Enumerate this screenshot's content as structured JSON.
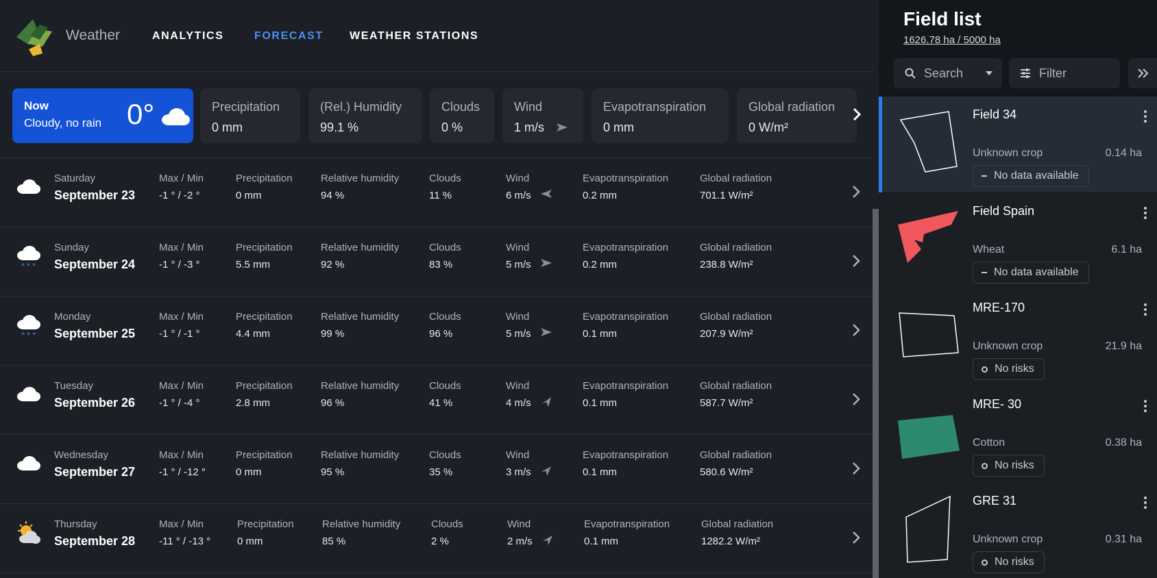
{
  "app": {
    "name": "Weather"
  },
  "nav": {
    "items": [
      {
        "label": "ANALYTICS",
        "active": false
      },
      {
        "label": "FORECAST",
        "active": true
      },
      {
        "label": "WEATHER STATIONS",
        "active": false
      }
    ]
  },
  "current": {
    "label": "Now",
    "condition": "Cloudy, no rain",
    "temperature": "0°",
    "icon": "cloud-icon",
    "metrics": [
      {
        "label": "Precipitation",
        "value": "0 mm"
      },
      {
        "label": "(Rel.) Humidity",
        "value": "99.1 %"
      },
      {
        "label": "Clouds",
        "value": "0 %"
      },
      {
        "label": "Wind",
        "value": "1 m/s"
      },
      {
        "label": "Evapotranspiration",
        "value": "0 mm"
      },
      {
        "label": "Global radiation",
        "value": "0 W/m²"
      }
    ]
  },
  "forecast_labels": {
    "maxmin": "Max / Min",
    "precip": "Precipitation",
    "humidity": "Relative humidity",
    "clouds": "Clouds",
    "wind": "Wind",
    "evap": "Evapotranspiration",
    "radiation": "Global radiation"
  },
  "forecast": [
    {
      "day": "Saturday",
      "date": "September 23",
      "icon": "cloud-icon",
      "maxmin": "-1 ° / -2 °",
      "precip": "0 mm",
      "humidity": "94 %",
      "clouds": "11 %",
      "wind": "6 m/s",
      "wind_dir": "west",
      "evap": "0.2 mm",
      "radiation": "701.1 W/m²"
    },
    {
      "day": "Sunday",
      "date": "September 24",
      "icon": "snow-cloud-icon",
      "maxmin": "-1 ° / -3 °",
      "precip": "5.5 mm",
      "humidity": "92 %",
      "clouds": "83 %",
      "wind": "5 m/s",
      "wind_dir": "east",
      "evap": "0.2 mm",
      "radiation": "238.8 W/m²"
    },
    {
      "day": "Monday",
      "date": "September 25",
      "icon": "snow-cloud-icon",
      "maxmin": "-1 ° / -1 °",
      "precip": "4.4 mm",
      "humidity": "99 %",
      "clouds": "96 %",
      "wind": "5 m/s",
      "wind_dir": "east",
      "evap": "0.1 mm",
      "radiation": "207.9 W/m²"
    },
    {
      "day": "Tuesday",
      "date": "September 26",
      "icon": "cloud-icon",
      "maxmin": "-1 ° / -4 °",
      "precip": "2.8 mm",
      "humidity": "96 %",
      "clouds": "41 %",
      "wind": "4 m/s",
      "wind_dir": "northeast",
      "evap": "0.1 mm",
      "radiation": "587.7 W/m²"
    },
    {
      "day": "Wednesday",
      "date": "September 27",
      "icon": "cloud-icon",
      "maxmin": "-1 ° / -12 °",
      "precip": "0 mm",
      "humidity": "95 %",
      "clouds": "35 %",
      "wind": "3 m/s",
      "wind_dir": "northeast",
      "evap": "0.1 mm",
      "radiation": "580.6 W/m²"
    },
    {
      "day": "Thursday",
      "date": "September 28",
      "icon": "sun-cloud-icon",
      "maxmin": "-11 ° / -13 °",
      "precip": "0 mm",
      "humidity": "85 %",
      "clouds": "2 %",
      "wind": "2 m/s",
      "wind_dir": "northeast",
      "evap": "0.1 mm",
      "radiation": "1282.2 W/m²"
    }
  ],
  "field_list": {
    "title": "Field list",
    "area": "1626.78 ha / 5000 ha",
    "search_label": "Search",
    "filter_label": "Filter",
    "fields": [
      {
        "name": "Field 34",
        "crop": "Unknown crop",
        "size": "0.14 ha",
        "status": "No data available",
        "status_type": "dash",
        "shape_color": "outline",
        "selected": true
      },
      {
        "name": "Field Spain",
        "crop": "Wheat",
        "size": "6.1 ha",
        "status": "No data available",
        "status_type": "dash",
        "shape_color": "#f0585e",
        "selected": false
      },
      {
        "name": "MRE-170",
        "crop": "Unknown crop",
        "size": "21.9 ha",
        "status": "No risks",
        "status_type": "circle",
        "shape_color": "outline",
        "selected": false
      },
      {
        "name": "MRE- 30",
        "crop": "Cotton",
        "size": "0.38 ha",
        "status": "No risks",
        "status_type": "circle",
        "shape_color": "#2e8a6e",
        "selected": false
      },
      {
        "name": "GRE 31",
        "crop": "Unknown crop",
        "size": "0.31 ha",
        "status": "No risks",
        "status_type": "circle",
        "shape_color": "outline",
        "selected": false
      }
    ]
  },
  "colors": {
    "accent": "#1553d6",
    "nav_active": "#4a8ff0",
    "selected_bar": "#2f7bf2"
  }
}
